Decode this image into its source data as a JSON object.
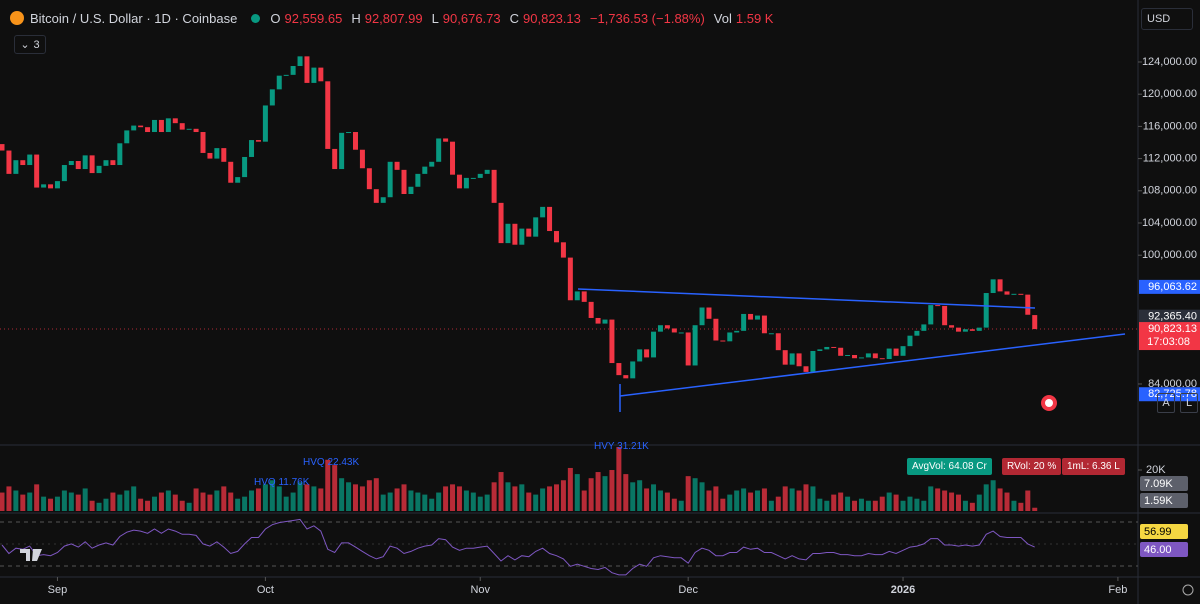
{
  "header": {
    "symbol": "Bitcoin / U.S. Dollar · 1D · Coinbase",
    "o_label": "O",
    "o": "92,559.65",
    "h_label": "H",
    "h": "92,807.99",
    "l_label": "L",
    "l": "90,676.73",
    "c_label": "C",
    "c": "90,823.13",
    "change": "−1,736.53 (−1.88%)",
    "vol_label": "Vol",
    "vol": "1.59 K"
  },
  "toolbar": {
    "indicators": "3",
    "currency": "USD",
    "auto": "A",
    "log": "L"
  },
  "volume_panel": {
    "labels": [
      "HVQ 11.76K",
      "HVQ 22.43K",
      "HVY 31.21K"
    ],
    "avg_vol": "AvgVol: 64.08 Cr",
    "rvol": "RVol: 20 %",
    "one_ml": "1mL: 6.36 L",
    "axis_badges": [
      "7.09K",
      "1.59K"
    ]
  },
  "rsi_panel": {
    "ma_label": "56.99",
    "rsi_label": "46.00"
  },
  "chart_data": {
    "type": "candlestick",
    "up_color": "#089981",
    "down_color": "#f23645",
    "rsi_color": "#7e57c2",
    "xlim": [
      -0.29,
      163.9
    ],
    "xticks": [
      {
        "value": 8,
        "label": "Sep"
      },
      {
        "value": 38,
        "label": "Oct"
      },
      {
        "value": 69,
        "label": "Nov"
      },
      {
        "value": 99,
        "label": "Dec"
      },
      {
        "value": 130,
        "label": "2026"
      },
      {
        "value": 161,
        "label": "Feb"
      }
    ],
    "ylim": [
      76420,
      131700
    ],
    "yticks": [
      {
        "value": 124000,
        "label": "124,000.00"
      },
      {
        "value": 120000,
        "label": "120,000.00"
      },
      {
        "value": 116000,
        "label": "116,000.00"
      },
      {
        "value": 112000,
        "label": "112,000.00"
      },
      {
        "value": 108000,
        "label": "108,000.00"
      },
      {
        "value": 104000,
        "label": "104,000.00"
      },
      {
        "value": 100000,
        "label": "100,000.00"
      },
      {
        "value": 84000,
        "label": "84,000.00"
      }
    ],
    "grid": false,
    "price_badges": [
      {
        "value": 96063.62,
        "label": "96,063.62",
        "color": "#2962ff"
      },
      {
        "value": 92365.4,
        "label": "92,365.40",
        "color": "#2a2e39"
      },
      {
        "value": 90823.13,
        "label": "90,823.13",
        "color": "#f23645",
        "sub": "17:03:08"
      },
      {
        "value": 82725.78,
        "label": "82,725.78",
        "color": "#2962ff"
      }
    ],
    "open": [
      113800,
      113000,
      110100,
      111800,
      111200,
      112500,
      108400,
      108800,
      108300,
      109200,
      111200,
      111700,
      110700,
      112400,
      110200,
      111100,
      111800,
      111200,
      113900,
      115500,
      116100,
      115900,
      115300,
      116800,
      115300,
      117000,
      116400,
      115600,
      115700,
      115300,
      112700,
      112000,
      113300,
      111600,
      109000,
      109700,
      112200,
      114300,
      114100,
      118600,
      120600,
      122300,
      122400,
      123500,
      124700,
      121400,
      123300,
      121600,
      113200,
      110700,
      115200,
      115300,
      113100,
      110800,
      108200,
      106500,
      107200,
      111600,
      110600,
      107600,
      108500,
      110100,
      111000,
      111600,
      114500,
      114100,
      110000,
      108300,
      109600,
      109600,
      110100,
      110600,
      106500,
      101500,
      103900,
      101300,
      103300,
      102300,
      104700,
      106000,
      103000,
      101600,
      99700,
      94400,
      95500,
      94200,
      92200,
      91500,
      92000,
      86600,
      85100,
      84700,
      86800,
      88300,
      87300,
      90500,
      91300,
      90900,
      90400,
      90400,
      86300,
      91300,
      93500,
      92100,
      89400,
      89300,
      90400,
      90600,
      92700,
      92000,
      92500,
      90300,
      90300,
      88200,
      86400,
      87800,
      86200,
      85500,
      88100,
      88300,
      88600,
      88500,
      87500,
      87600,
      87200,
      87300,
      87800,
      87200,
      87100,
      88400,
      87500,
      88700,
      90000,
      90600,
      91400,
      93800,
      93700,
      91300,
      91000,
      90500,
      90800,
      90600,
      91000,
      95300,
      97000,
      95500,
      95100,
      95200,
      95100,
      92559.65
    ],
    "close": [
      113000,
      110100,
      111800,
      111200,
      112500,
      108400,
      108800,
      108300,
      109200,
      111200,
      111700,
      110700,
      112400,
      110200,
      111100,
      111800,
      111200,
      113900,
      115500,
      116100,
      115900,
      115300,
      116800,
      115300,
      117000,
      116400,
      115600,
      115700,
      115300,
      112700,
      112000,
      113300,
      111600,
      109000,
      109700,
      112200,
      114300,
      114100,
      118600,
      120600,
      122300,
      122400,
      123500,
      124700,
      121400,
      123300,
      121600,
      113200,
      110700,
      115200,
      115300,
      113100,
      110800,
      108200,
      106500,
      107200,
      111600,
      110600,
      107600,
      108500,
      110100,
      111000,
      111600,
      114500,
      114100,
      110000,
      108300,
      109600,
      109600,
      110100,
      110600,
      106500,
      101500,
      103900,
      101300,
      103300,
      102300,
      104700,
      106000,
      103000,
      101600,
      99700,
      94400,
      95500,
      94200,
      92200,
      91500,
      92000,
      86600,
      85100,
      84700,
      86800,
      88300,
      87300,
      90500,
      91300,
      90900,
      90400,
      90400,
      86300,
      91300,
      93500,
      92100,
      89400,
      89300,
      90400,
      90600,
      92700,
      92000,
      92500,
      90300,
      90300,
      88200,
      86400,
      87800,
      86200,
      85500,
      88100,
      88300,
      88600,
      88500,
      87500,
      87600,
      87200,
      87300,
      87800,
      87200,
      87100,
      88400,
      87500,
      88700,
      90000,
      90600,
      91400,
      93800,
      93700,
      91300,
      91000,
      90500,
      90800,
      90600,
      91000,
      95300,
      97000,
      95500,
      95100,
      95200,
      95100,
      92600,
      90823.13
    ],
    "volume_ylim": [
      0,
      32200
    ],
    "volume_yticks": [
      {
        "value": 20000,
        "label": "20K"
      }
    ],
    "volume": [
      9000,
      12000,
      10000,
      8000,
      9000,
      13000,
      7000,
      6000,
      7000,
      10000,
      9000,
      8000,
      11000,
      5000,
      4000,
      6000,
      9000,
      8000,
      10000,
      12000,
      6000,
      5000,
      7000,
      9000,
      10000,
      8000,
      5000,
      4000,
      11000,
      9000,
      8000,
      10000,
      12000,
      9000,
      6000,
      7000,
      10000,
      11000,
      13000,
      15000,
      12000,
      7000,
      9000,
      14000,
      13000,
      12000,
      11000,
      25000,
      22400,
      16000,
      14000,
      13000,
      12000,
      15000,
      16000,
      8000,
      9000,
      11000,
      13000,
      10000,
      9000,
      8000,
      6000,
      9000,
      12000,
      13000,
      12000,
      10000,
      9000,
      7000,
      8000,
      14000,
      19000,
      14000,
      12000,
      13000,
      9000,
      8000,
      11000,
      12000,
      13000,
      15000,
      21000,
      18000,
      10000,
      16000,
      19000,
      17000,
      20000,
      31200,
      18000,
      14000,
      15000,
      11000,
      13000,
      10000,
      9000,
      6000,
      5000,
      17000,
      16000,
      14000,
      10000,
      12000,
      6000,
      8000,
      10000,
      11000,
      9000,
      10000,
      11000,
      5000,
      7000,
      12000,
      11000,
      10000,
      13000,
      12000,
      6000,
      5000,
      8000,
      9000,
      7000,
      5000,
      6000,
      5000,
      5000,
      7000,
      9000,
      8000,
      5000,
      7000,
      6000,
      5000,
      12000,
      11000,
      10000,
      9000,
      8000,
      5000,
      4000,
      8000,
      13000,
      15000,
      11000,
      9000,
      5000,
      4000,
      10000,
      1590
    ],
    "rsi_ylim": [
      18,
      78
    ],
    "rsi": [
      48,
      40,
      45,
      44,
      47,
      38,
      39,
      38,
      41,
      47,
      49,
      46,
      51,
      45,
      48,
      50,
      48,
      56,
      60,
      62,
      61,
      59,
      63,
      59,
      63,
      61,
      58,
      58,
      57,
      49,
      47,
      51,
      46,
      40,
      42,
      49,
      55,
      55,
      63,
      67,
      69,
      70,
      71,
      72,
      63,
      66,
      61,
      44,
      41,
      50,
      50,
      46,
      42,
      38,
      35,
      37,
      47,
      45,
      40,
      42,
      45,
      47,
      48,
      54,
      53,
      46,
      43,
      45,
      45,
      46,
      47,
      40,
      33,
      38,
      34,
      38,
      37,
      42,
      45,
      40,
      38,
      35,
      28,
      30,
      28,
      26,
      25,
      27,
      22,
      20,
      20,
      26,
      30,
      28,
      36,
      38,
      37,
      36,
      36,
      31,
      41,
      45,
      43,
      38,
      38,
      41,
      41,
      46,
      44,
      45,
      41,
      41,
      38,
      35,
      38,
      35,
      34,
      40,
      40,
      41,
      41,
      39,
      39,
      38,
      38,
      40,
      39,
      39,
      42,
      40,
      43,
      46,
      47,
      49,
      54,
      54,
      48,
      48,
      47,
      48,
      47,
      48,
      58,
      61,
      56,
      55,
      55,
      55,
      49,
      46
    ]
  }
}
